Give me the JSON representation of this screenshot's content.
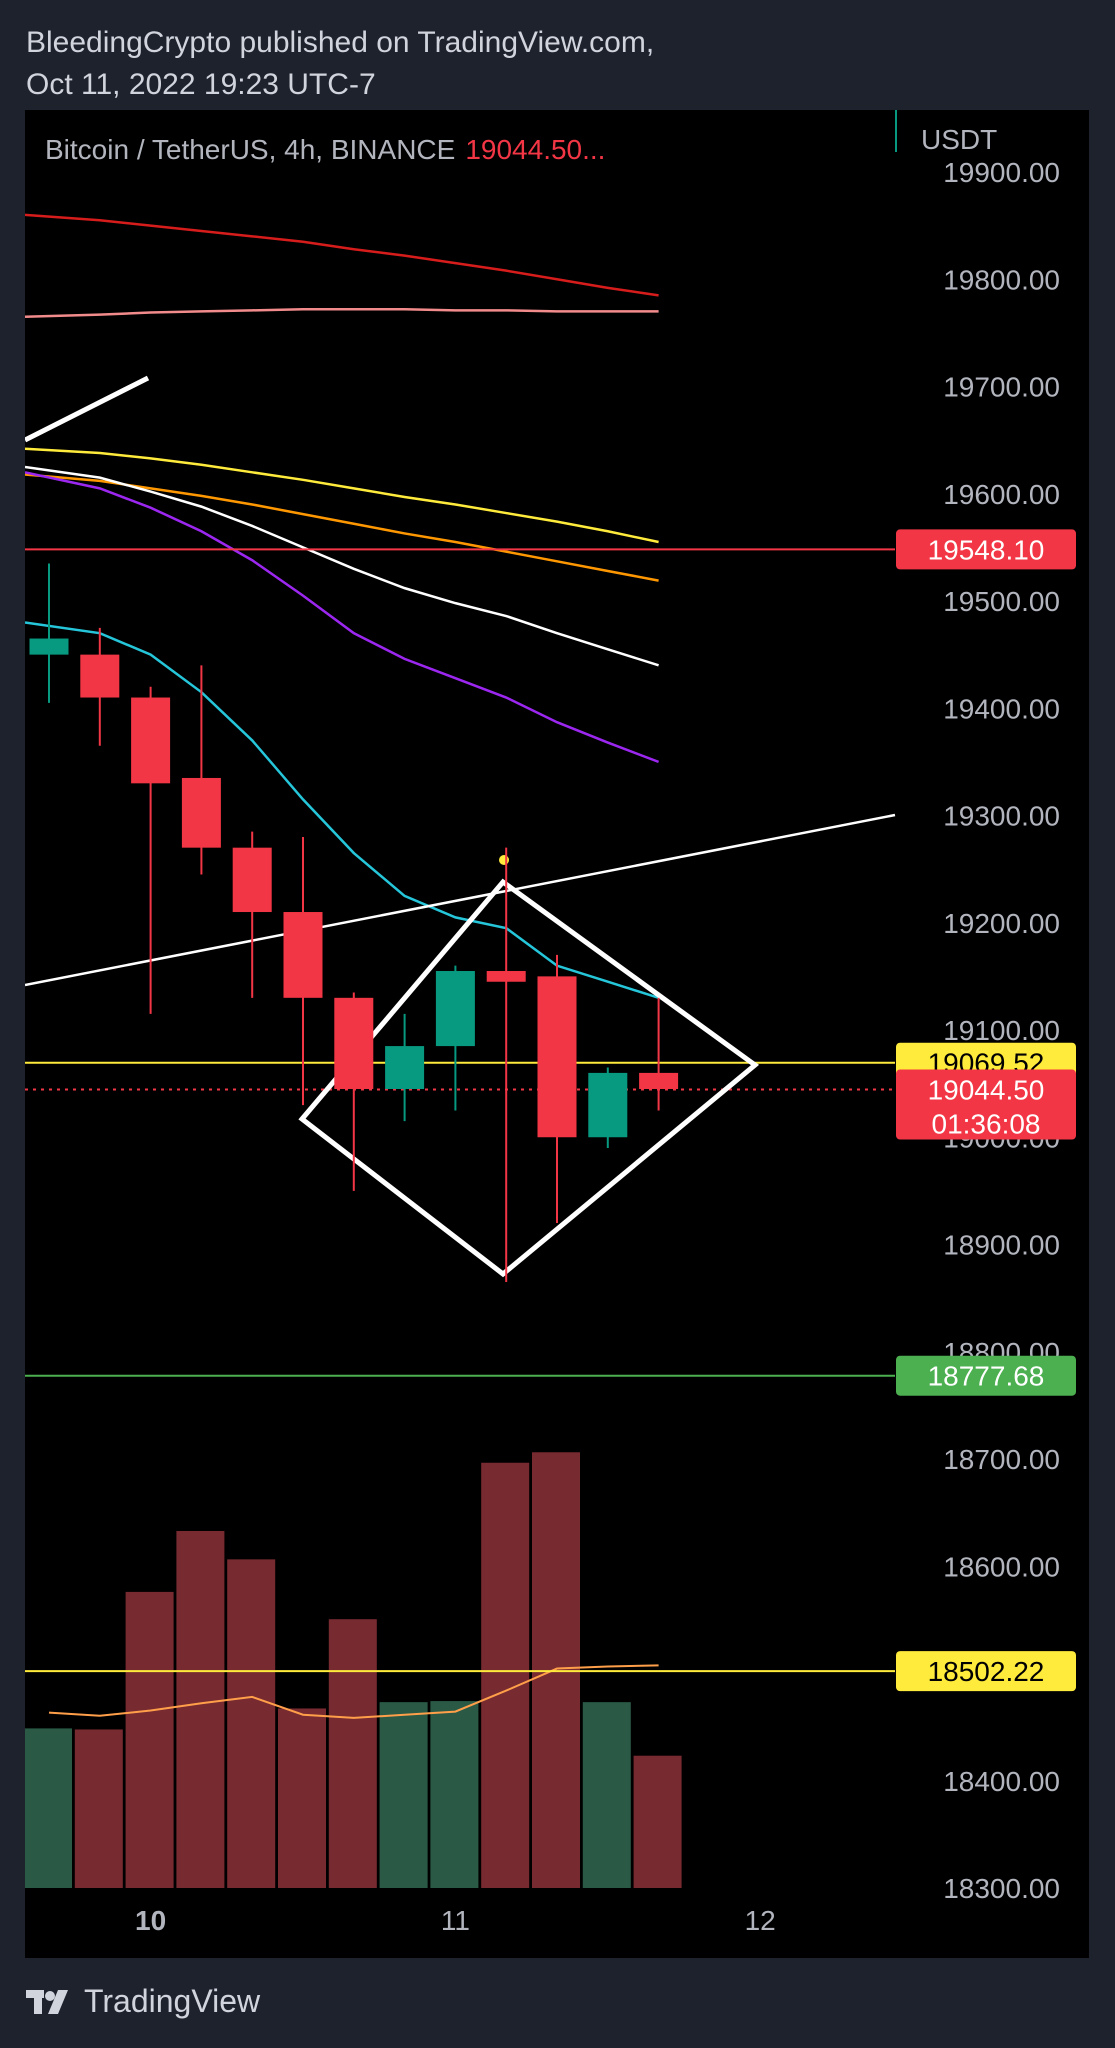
{
  "header": {
    "line1": "BleedingCrypto published on TradingView.com,",
    "line2": "Oct 11, 2022 19:23 UTC-7"
  },
  "symbol": {
    "text": "Bitcoin / TetherUS, 4h, BINANCE",
    "price": "19044.50..."
  },
  "axis_unit": "USDT",
  "footer": {
    "brand": "TradingView"
  },
  "colors": {
    "up": "#089981",
    "down": "#f23645",
    "volume_up": "#2a5a45",
    "volume_down": "#772a30",
    "label_red": "#f23645",
    "label_yellow": "#ffeb3b",
    "label_green": "#4caf50"
  },
  "chart_data": {
    "type": "candlestick",
    "title": "",
    "ylim": [
      18300,
      19900
    ],
    "y_ticks": [
      "19900.00",
      "19800.00",
      "19700.00",
      "19600.00",
      "19500.00",
      "19400.00",
      "19300.00",
      "19200.00",
      "19100.00",
      "19000.00",
      "18900.00",
      "18800.00",
      "18700.00",
      "18600.00",
      "18500.00",
      "18400.00",
      "18300.00"
    ],
    "x_ticks": [
      {
        "label": "10",
        "index": 2,
        "bold": true
      },
      {
        "label": "11",
        "index": 8,
        "bold": false
      },
      {
        "label": "12",
        "index": 14,
        "bold": false
      }
    ],
    "candles": [
      {
        "o": 19450,
        "h": 19535,
        "l": 19405,
        "c": 19465
      },
      {
        "o": 19450,
        "h": 19475,
        "l": 19365,
        "c": 19410
      },
      {
        "o": 19410,
        "h": 19420,
        "l": 19115,
        "c": 19330
      },
      {
        "o": 19335,
        "h": 19440,
        "l": 19245,
        "c": 19270
      },
      {
        "o": 19270,
        "h": 19285,
        "l": 19130,
        "c": 19210
      },
      {
        "o": 19210,
        "h": 19280,
        "l": 19030,
        "c": 19130
      },
      {
        "o": 19130,
        "h": 19135,
        "l": 18950,
        "c": 19045
      },
      {
        "o": 19045,
        "h": 19115,
        "l": 19015,
        "c": 19085
      },
      {
        "o": 19085,
        "h": 19160,
        "l": 19025,
        "c": 19155
      },
      {
        "o": 19155,
        "h": 19270,
        "l": 18865,
        "c": 19145
      },
      {
        "o": 19150,
        "h": 19170,
        "l": 18920,
        "c": 19000
      },
      {
        "o": 19000,
        "h": 19065,
        "l": 18990,
        "c": 19060
      },
      {
        "o": 19060,
        "h": 19130,
        "l": 19025,
        "c": 19045
      }
    ],
    "volume": {
      "values": [
        152,
        151,
        282,
        340,
        313,
        171,
        256,
        177,
        178,
        405,
        415,
        177,
        126
      ],
      "ma": [
        167,
        164,
        169,
        176,
        182,
        165,
        162,
        165,
        168,
        188,
        209,
        211,
        212
      ]
    },
    "moving_averages": [
      {
        "color": "#d71c1c",
        "values": [
          19860,
          19855,
          19850,
          19845,
          19840,
          19835,
          19828,
          19822,
          19815,
          19808,
          19800,
          19792,
          19785
        ]
      },
      {
        "color": "#f28b8b",
        "values": [
          19765,
          19767,
          19769,
          19770,
          19771,
          19772,
          19772,
          19772,
          19771,
          19771,
          19770,
          19770,
          19770
        ]
      },
      {
        "color": "#ffeb3b",
        "values": [
          19642,
          19638,
          19633,
          19627,
          19620,
          19613,
          19605,
          19597,
          19590,
          19582,
          19574,
          19565,
          19555
        ]
      },
      {
        "color": "#ff9800",
        "values": [
          19618,
          19612,
          19605,
          19598,
          19590,
          19581,
          19572,
          19563,
          19555,
          19546,
          19537,
          19528,
          19519
        ]
      },
      {
        "color": "#ffffff",
        "values": [
          19625,
          19615,
          19602,
          19588,
          19570,
          19550,
          19530,
          19512,
          19498,
          19486,
          19470,
          19455,
          19440
        ]
      },
      {
        "color": "#9c27f0",
        "values": [
          19620,
          19605,
          19587,
          19565,
          19538,
          19505,
          19470,
          19446,
          19428,
          19410,
          19387,
          19368,
          19350
        ]
      },
      {
        "color": "#26c6da",
        "values": [
          19480,
          19470,
          19450,
          19415,
          19370,
          19315,
          19265,
          19225,
          19205,
          19195,
          19160,
          19145,
          19130
        ]
      }
    ],
    "price_lines": [
      {
        "value": 19548.1,
        "label": "19548.10",
        "color": "#f23645",
        "style": "solid"
      },
      {
        "value": 19069.52,
        "label": "19069.52",
        "color": "#ffeb3b",
        "style": "solid"
      },
      {
        "value": 19044.5,
        "label": "19044.50",
        "sub": "01:36:08",
        "color": "#f23645",
        "style": "dotted"
      },
      {
        "value": 18777.68,
        "label": "18777.68",
        "color": "#4caf50",
        "style": "solid"
      },
      {
        "value": 18502.22,
        "label": "18502.22",
        "color": "#ffeb3b",
        "style": "solid"
      }
    ]
  }
}
